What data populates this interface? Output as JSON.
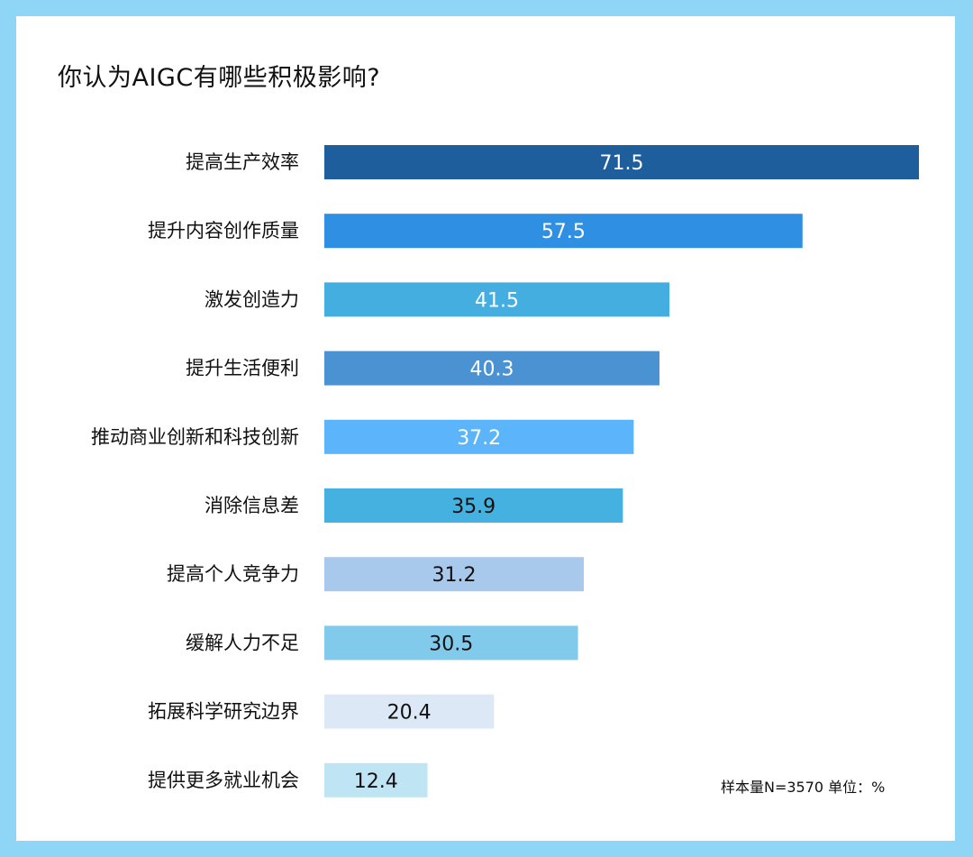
{
  "chart_data": {
    "type": "bar",
    "orientation": "horizontal",
    "title": "你认为AIGC有哪些积极影响?",
    "categories": [
      "提高生产效率",
      "提升内容创作质量",
      "激发创造力",
      "提升生活便利",
      "推动商业创新和科技创新",
      "消除信息差",
      "提高个人竞争力",
      "缓解人力不足",
      "拓展科学研究边界",
      "提供更多就业机会"
    ],
    "values": [
      71.5,
      57.5,
      41.5,
      40.3,
      37.2,
      35.9,
      31.2,
      30.5,
      20.4,
      12.4
    ],
    "colors": [
      "#1f5e9c",
      "#2f8fe3",
      "#45aee0",
      "#4b92d3",
      "#5cb4fb",
      "#45b1e1",
      "#a8c8ec",
      "#82caeb",
      "#dde8f6",
      "#bfe4f4"
    ],
    "label_colors": [
      "#ffffff",
      "#ffffff",
      "#ffffff",
      "#ffffff",
      "#ffffff",
      "#111111",
      "#111111",
      "#111111",
      "#111111",
      "#111111"
    ],
    "xlim": [
      0,
      71.5
    ],
    "xlabel": "",
    "ylabel": "",
    "grid": false,
    "note": "样本量N=3570   单位：%"
  }
}
